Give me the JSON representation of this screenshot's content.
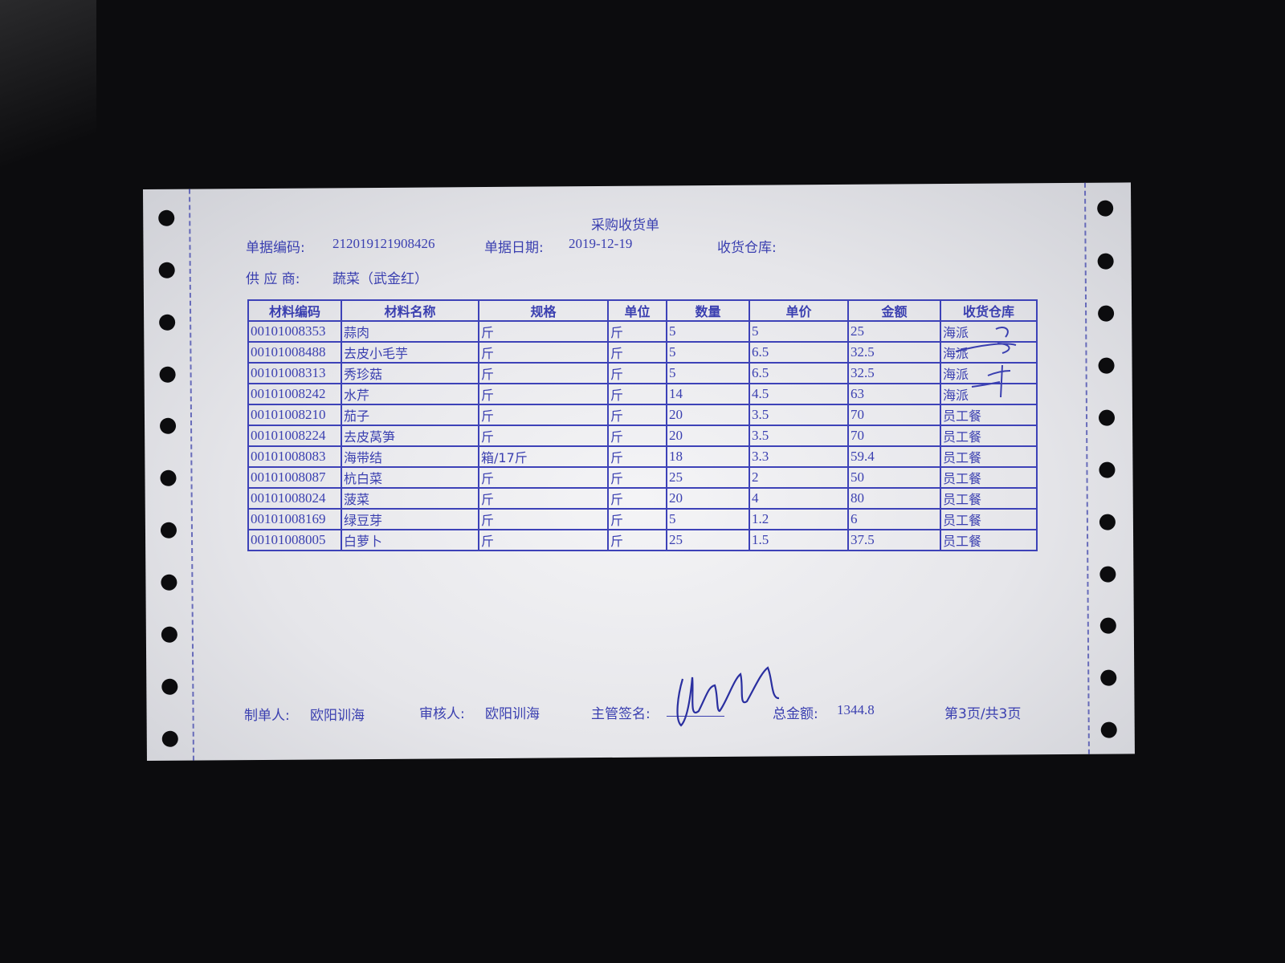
{
  "document": {
    "title": "采购收货单",
    "fields": {
      "doc_no_label": "单据编码:",
      "doc_no": "212019121908426",
      "doc_date_label": "单据日期:",
      "doc_date": "2019-12-19",
      "warehouse_label": "收货仓库:",
      "warehouse": "",
      "supplier_label": "供 应 商:",
      "supplier": "蔬菜（武金红）"
    },
    "table": {
      "columns": [
        "材料编码",
        "材料名称",
        "规格",
        "单位",
        "数量",
        "单价",
        "金额",
        "收货仓库"
      ],
      "rows": [
        [
          "00101008353",
          "蒜肉",
          "斤",
          "斤",
          "5",
          "5",
          "25",
          "海派"
        ],
        [
          "00101008488",
          "去皮小毛芋",
          "斤",
          "斤",
          "5",
          "6.5",
          "32.5",
          "海派"
        ],
        [
          "00101008313",
          "秀珍菇",
          "斤",
          "斤",
          "5",
          "6.5",
          "32.5",
          "海派"
        ],
        [
          "00101008242",
          "水芹",
          "斤",
          "斤",
          "14",
          "4.5",
          "63",
          "海派"
        ],
        [
          "00101008210",
          "茄子",
          "斤",
          "斤",
          "20",
          "3.5",
          "70",
          "员工餐"
        ],
        [
          "00101008224",
          "去皮莴笋",
          "斤",
          "斤",
          "20",
          "3.5",
          "70",
          "员工餐"
        ],
        [
          "00101008083",
          "海带结",
          "箱/17斤",
          "斤",
          "18",
          "3.3",
          "59.4",
          "员工餐"
        ],
        [
          "00101008087",
          "杭白菜",
          "斤",
          "斤",
          "25",
          "2",
          "50",
          "员工餐"
        ],
        [
          "00101008024",
          "菠菜",
          "斤",
          "斤",
          "20",
          "4",
          "80",
          "员工餐"
        ],
        [
          "00101008169",
          "绿豆芽",
          "斤",
          "斤",
          "5",
          "1.2",
          "6",
          "员工餐"
        ],
        [
          "00101008005",
          "白萝卜",
          "斤",
          "斤",
          "25",
          "1.5",
          "37.5",
          "员工餐"
        ]
      ]
    },
    "footer": {
      "maker_label": "制单人:",
      "maker": "欧阳训海",
      "reviewer_label": "审核人:",
      "reviewer": "欧阳训海",
      "supervisor_label": "主管签名:",
      "total_label": "总金额:",
      "total": "1344.8",
      "page": "第3页/共3页"
    },
    "colors": {
      "ink": "#3a3fb0",
      "paper": "#ececf0",
      "background": "#0c0c0e"
    }
  }
}
